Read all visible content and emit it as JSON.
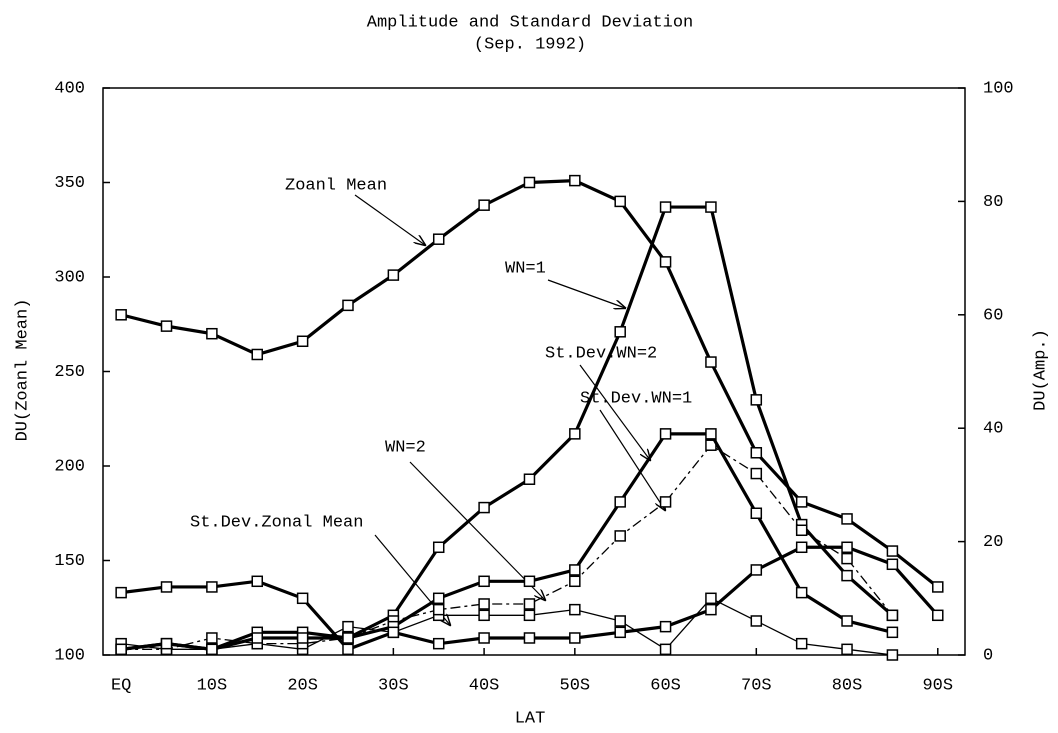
{
  "chart_data": {
    "type": "line",
    "title": "Amplitude and Standard Deviation",
    "subtitle": "(Sep. 1992)",
    "x_label": "LAT",
    "y_label": "DU(Zoanl Mean)",
    "y2_label": "DU(Amp.)",
    "x": [
      0,
      5,
      10,
      15,
      20,
      25,
      30,
      35,
      40,
      45,
      50,
      55,
      60,
      65,
      70,
      75,
      80,
      85,
      90
    ],
    "xlim": [
      -2,
      93
    ],
    "xticks": [
      {
        "value": 0,
        "label": "EQ"
      },
      {
        "value": 10,
        "label": "10S"
      },
      {
        "value": 20,
        "label": "20S"
      },
      {
        "value": 30,
        "label": "30S"
      },
      {
        "value": 40,
        "label": "40S"
      },
      {
        "value": 50,
        "label": "50S"
      },
      {
        "value": 60,
        "label": "60S"
      },
      {
        "value": 70,
        "label": "70S"
      },
      {
        "value": 80,
        "label": "80S"
      },
      {
        "value": 90,
        "label": "90S"
      }
    ],
    "ylim": [
      100,
      400
    ],
    "yticks": [
      100,
      150,
      200,
      250,
      300,
      350,
      400
    ],
    "y2lim": [
      0,
      100
    ],
    "y2ticks": [
      0,
      20,
      40,
      60,
      80,
      100
    ],
    "grid": false,
    "series": [
      {
        "name": "Zoanl Mean",
        "color": "#000000",
        "style": "thick",
        "values": [
          280,
          274,
          270,
          259,
          266,
          285,
          301,
          320,
          338,
          350,
          351,
          340,
          308,
          255,
          207,
          181,
          172,
          155,
          136
        ]
      },
      {
        "name": "WN=1",
        "color": "#000000",
        "style": "thick",
        "axis": "y2",
        "values": [
          1,
          2,
          1,
          4,
          4,
          3,
          7,
          19,
          26,
          31,
          39,
          57,
          79,
          79,
          45,
          23,
          14,
          7,
          null
        ]
      },
      {
        "name": "St.Dev.WN=2",
        "color": "#000000",
        "style": "thin",
        "axis": "y2",
        "values": [
          2,
          1,
          1,
          2,
          1,
          5,
          4,
          7,
          7,
          7,
          8,
          6,
          1,
          10,
          6,
          2,
          1,
          0,
          null
        ]
      },
      {
        "name": "St.Dev.WN=1",
        "color": "#000000",
        "style": "dashed",
        "axis": "y2",
        "values": [
          1,
          1,
          3,
          2,
          2,
          3,
          6,
          8,
          9,
          9,
          13,
          21,
          27,
          37,
          32,
          22,
          17,
          7,
          null
        ]
      },
      {
        "name": "WN=2",
        "color": "#000000",
        "style": "thick",
        "axis": "y2",
        "values": [
          1,
          2,
          1,
          3,
          3,
          3,
          5,
          10,
          13,
          13,
          15,
          27,
          39,
          39,
          25,
          11,
          6,
          4,
          null
        ]
      },
      {
        "name": "St.Dev.Zonal Mean",
        "color": "#000000",
        "style": "thick",
        "axis": "y2",
        "values": [
          11,
          12,
          12,
          13,
          10,
          1,
          4,
          2,
          3,
          3,
          3,
          4,
          5,
          8,
          15,
          19,
          19,
          16,
          7
        ]
      }
    ]
  }
}
